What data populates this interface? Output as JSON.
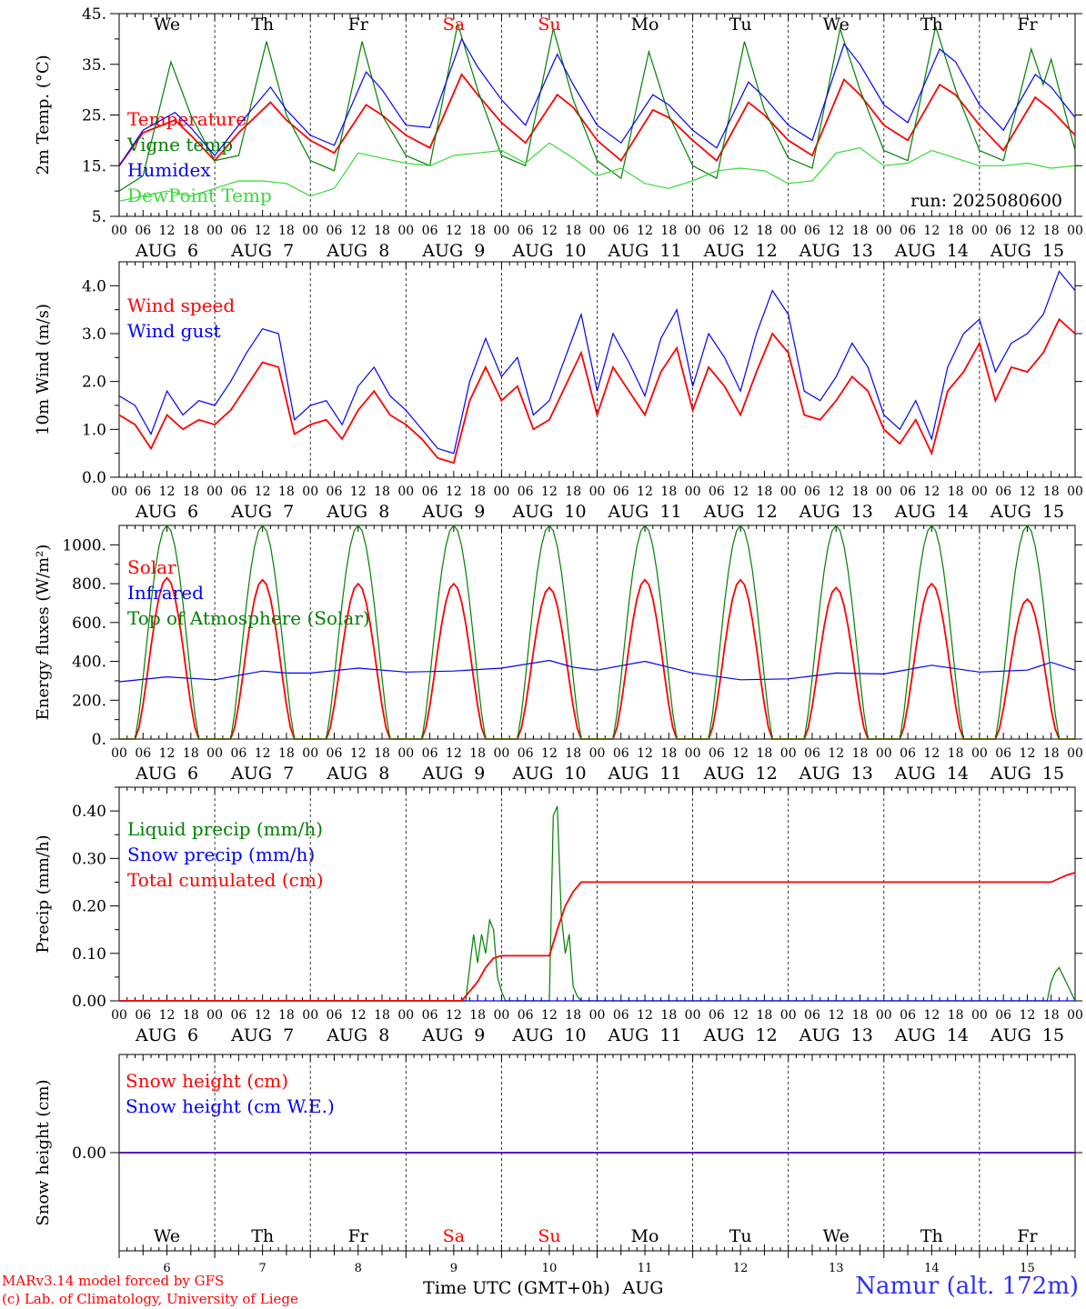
{
  "run_label": "run: 2025080600",
  "days": [
    {
      "abbr": "We",
      "weekend": false,
      "date": "6"
    },
    {
      "abbr": "Th",
      "weekend": false,
      "date": "7"
    },
    {
      "abbr": "Fr",
      "weekend": false,
      "date": "8"
    },
    {
      "abbr": "Sa",
      "weekend": true,
      "date": "9"
    },
    {
      "abbr": "Su",
      "weekend": true,
      "date": "10"
    },
    {
      "abbr": "Mo",
      "weekend": false,
      "date": "11"
    },
    {
      "abbr": "Tu",
      "weekend": false,
      "date": "12"
    },
    {
      "abbr": "We",
      "weekend": false,
      "date": "13"
    },
    {
      "abbr": "Th",
      "weekend": false,
      "date": "14"
    },
    {
      "abbr": "Fr",
      "weekend": false,
      "date": "15"
    }
  ],
  "hour_labels": [
    "00",
    "06",
    "12",
    "18"
  ],
  "last_hour_label": "00",
  "month_label": "AUG",
  "x_axis_title": "Time UTC (GMT+0h)",
  "x_axis_month": "AUG",
  "footer": {
    "line1": "MARv3.14 model forced by GFS",
    "line2": "(c) Lab. of Climatology, University of Liege",
    "station": "Namur (alt. 172m)"
  },
  "colors": {
    "red": "#ff0000",
    "green": "#008000",
    "blue": "#0000ff",
    "light_green": "#33dd33"
  },
  "chart_data": [
    {
      "type": "line",
      "ylabel": "2m Temp. (°C)",
      "ylim": [
        5,
        45
      ],
      "ytick_labels": [
        "5.",
        "15.",
        "25.",
        "35.",
        "45."
      ],
      "x_unit": "hours since 2025-08-06 00 UTC",
      "series": [
        {
          "name": "Temperature",
          "color": "#ff0000",
          "x": [
            0,
            6,
            14,
            18,
            24,
            30,
            38,
            42,
            48,
            54,
            62,
            66,
            72,
            78,
            86,
            90,
            96,
            102,
            110,
            114,
            120,
            126,
            134,
            138,
            144,
            150,
            158,
            162,
            168,
            174,
            182,
            186,
            192,
            198,
            206,
            210,
            216,
            222,
            230,
            234,
            240
          ],
          "y": [
            15.0,
            21.5,
            24.0,
            21.0,
            16.0,
            21.5,
            27.5,
            24.0,
            20.0,
            17.5,
            27.0,
            25.0,
            21.0,
            18.5,
            33.0,
            29.0,
            23.5,
            19.5,
            29.0,
            26.5,
            20.0,
            16.0,
            26.0,
            24.5,
            20.0,
            16.0,
            27.5,
            25.0,
            20.0,
            17.0,
            32.0,
            29.0,
            23.0,
            20.0,
            31.0,
            29.0,
            23.0,
            18.0,
            28.5,
            26.0,
            21.0
          ]
        },
        {
          "name": "Vigne temp",
          "color": "#008000",
          "x": [
            0,
            6,
            13,
            18,
            24,
            30,
            37,
            42,
            48,
            54,
            61,
            66,
            72,
            78,
            85,
            90,
            96,
            102,
            109,
            114,
            120,
            126,
            133,
            138,
            144,
            150,
            157,
            162,
            168,
            174,
            181,
            186,
            192,
            198,
            205,
            210,
            216,
            222,
            229,
            232,
            234,
            240
          ],
          "y": [
            10.0,
            13.0,
            35.5,
            25.0,
            16.0,
            17.0,
            39.5,
            25.0,
            16.0,
            14.0,
            39.5,
            25.0,
            17.0,
            15.0,
            43.0,
            30.0,
            17.0,
            15.0,
            42.0,
            28.0,
            16.0,
            12.5,
            37.5,
            25.0,
            15.0,
            12.5,
            39.5,
            26.0,
            16.5,
            14.5,
            42.0,
            30.0,
            18.0,
            16.0,
            42.5,
            30.0,
            18.0,
            16.0,
            38.0,
            31.0,
            36.0,
            18.0
          ]
        },
        {
          "name": "Humidex",
          "color": "#0000ff",
          "x": [
            0,
            6,
            14,
            18,
            24,
            30,
            38,
            42,
            48,
            54,
            62,
            66,
            72,
            78,
            86,
            90,
            96,
            102,
            110,
            114,
            120,
            126,
            134,
            138,
            144,
            150,
            158,
            162,
            168,
            174,
            182,
            186,
            192,
            198,
            206,
            210,
            216,
            222,
            230,
            234,
            240
          ],
          "y": [
            15.0,
            22.0,
            25.5,
            22.5,
            17.0,
            23.0,
            30.5,
            26.0,
            21.0,
            19.0,
            33.5,
            30.0,
            23.0,
            22.5,
            40.0,
            34.5,
            28.0,
            23.0,
            37.0,
            31.0,
            23.0,
            19.5,
            29.0,
            27.0,
            22.0,
            18.5,
            31.5,
            28.5,
            23.0,
            20.0,
            39.0,
            35.0,
            27.0,
            23.5,
            38.0,
            35.5,
            27.0,
            22.0,
            33.0,
            30.5,
            24.5
          ]
        },
        {
          "name": "DewPoint Temp",
          "color": "#33dd33",
          "x": [
            0,
            6,
            12,
            18,
            24,
            30,
            36,
            42,
            48,
            54,
            60,
            66,
            72,
            78,
            84,
            90,
            96,
            102,
            108,
            114,
            120,
            126,
            132,
            138,
            144,
            150,
            156,
            162,
            168,
            174,
            180,
            186,
            192,
            198,
            204,
            210,
            216,
            222,
            228,
            234,
            240
          ],
          "y": [
            8.0,
            9.0,
            10.0,
            9.0,
            10.5,
            12.0,
            12.0,
            11.5,
            9.0,
            10.5,
            17.5,
            16.5,
            15.5,
            15.0,
            17.0,
            17.5,
            18.0,
            15.5,
            19.5,
            16.5,
            13.0,
            14.5,
            11.5,
            10.5,
            12.0,
            14.0,
            14.5,
            14.0,
            11.5,
            12.0,
            17.5,
            18.5,
            15.0,
            15.5,
            18.0,
            16.5,
            15.0,
            15.0,
            15.5,
            14.5,
            15.0
          ]
        }
      ]
    },
    {
      "type": "line",
      "ylabel": "10m Wind (m/s)",
      "ylim": [
        0,
        4.5
      ],
      "ytick_labels": [
        "0.0",
        "1.0",
        "2.0",
        "3.0",
        "4.0"
      ],
      "x_unit": "hours since 2025-08-06 00 UTC",
      "series": [
        {
          "name": "Wind speed",
          "color": "#ff0000",
          "x": [
            0,
            4,
            8,
            12,
            16,
            20,
            24,
            28,
            32,
            36,
            40,
            44,
            48,
            52,
            56,
            60,
            64,
            68,
            72,
            76,
            80,
            84,
            88,
            92,
            96,
            100,
            104,
            108,
            112,
            116,
            120,
            124,
            128,
            132,
            136,
            140,
            144,
            148,
            152,
            156,
            160,
            164,
            168,
            172,
            176,
            180,
            184,
            188,
            192,
            196,
            200,
            204,
            208,
            212,
            216,
            220,
            224,
            228,
            232,
            236,
            240
          ],
          "y": [
            1.3,
            1.1,
            0.6,
            1.3,
            1.0,
            1.2,
            1.1,
            1.4,
            1.9,
            2.4,
            2.3,
            0.9,
            1.1,
            1.2,
            0.8,
            1.4,
            1.8,
            1.3,
            1.1,
            0.8,
            0.4,
            0.3,
            1.6,
            2.3,
            1.6,
            1.9,
            1.0,
            1.2,
            1.9,
            2.6,
            1.3,
            2.3,
            1.8,
            1.3,
            2.2,
            2.7,
            1.4,
            2.3,
            1.9,
            1.3,
            2.2,
            3.0,
            2.6,
            1.3,
            1.2,
            1.6,
            2.1,
            1.8,
            1.0,
            0.7,
            1.2,
            0.5,
            1.8,
            2.2,
            2.8,
            1.6,
            2.3,
            2.2,
            2.6,
            3.3,
            3.0
          ]
        },
        {
          "name": "Wind gust",
          "color": "#0000ff",
          "x": [
            0,
            4,
            8,
            12,
            16,
            20,
            24,
            28,
            32,
            36,
            40,
            44,
            48,
            52,
            56,
            60,
            64,
            68,
            72,
            76,
            80,
            84,
            88,
            92,
            96,
            100,
            104,
            108,
            112,
            116,
            120,
            124,
            128,
            132,
            136,
            140,
            144,
            148,
            152,
            156,
            160,
            164,
            168,
            172,
            176,
            180,
            184,
            188,
            192,
            196,
            200,
            204,
            208,
            212,
            216,
            220,
            224,
            228,
            232,
            236,
            240
          ],
          "y": [
            1.7,
            1.5,
            0.9,
            1.8,
            1.3,
            1.6,
            1.5,
            2.0,
            2.6,
            3.1,
            3.0,
            1.2,
            1.5,
            1.6,
            1.1,
            1.9,
            2.3,
            1.7,
            1.4,
            1.0,
            0.6,
            0.5,
            2.0,
            2.9,
            2.1,
            2.5,
            1.3,
            1.6,
            2.5,
            3.4,
            1.8,
            3.0,
            2.4,
            1.7,
            2.9,
            3.5,
            1.9,
            3.0,
            2.5,
            1.8,
            3.0,
            3.9,
            3.4,
            1.8,
            1.6,
            2.1,
            2.8,
            2.3,
            1.3,
            1.0,
            1.6,
            0.8,
            2.3,
            3.0,
            3.3,
            2.2,
            2.8,
            3.0,
            3.4,
            4.3,
            3.9
          ]
        }
      ]
    },
    {
      "type": "line",
      "ylabel": "Energy fluxes (W/m²)",
      "ylim": [
        0,
        1100
      ],
      "ytick_labels": [
        "0.",
        "200.",
        "400.",
        "600.",
        "800.",
        "1000."
      ],
      "x_unit": "hours since 2025-08-06 00 UTC",
      "solar_peaks": [
        830,
        820,
        800,
        800,
        780,
        820,
        820,
        780,
        800,
        720
      ],
      "toa_peak": 1100,
      "sun_hours": [
        4,
        20
      ],
      "series": [
        {
          "name": "Solar",
          "color": "#ff0000",
          "daily_peak_ref": "solar_peaks"
        },
        {
          "name": "Infrared",
          "color": "#0000ff",
          "x": [
            0,
            12,
            24,
            36,
            42,
            48,
            60,
            72,
            84,
            96,
            108,
            114,
            120,
            132,
            144,
            156,
            168,
            180,
            192,
            204,
            216,
            228,
            234,
            240
          ],
          "y": [
            295,
            320,
            305,
            350,
            340,
            340,
            365,
            345,
            350,
            365,
            405,
            370,
            355,
            400,
            340,
            305,
            310,
            340,
            335,
            380,
            345,
            355,
            395,
            355
          ]
        },
        {
          "name": "Top of Atmosphere (Solar)",
          "color": "#008000",
          "daily_peak_ref": "toa_peak"
        }
      ]
    },
    {
      "type": "line",
      "ylabel": "Precip (mm/h)",
      "ylim": [
        0,
        0.45
      ],
      "ytick_labels": [
        "0.00",
        "0.10",
        "0.20",
        "0.30",
        "0.40"
      ],
      "x_unit": "hours since 2025-08-06 00 UTC",
      "series": [
        {
          "name": "Liquid precip (mm/h)",
          "color": "#008000",
          "x": [
            0,
            87,
            89,
            90,
            91,
            92,
            93,
            94,
            95,
            96,
            97,
            108,
            109,
            110,
            111,
            112,
            113,
            114,
            115,
            116,
            117,
            233,
            234,
            235,
            236,
            240
          ],
          "y": [
            0,
            0,
            0.14,
            0.08,
            0.14,
            0.1,
            0.17,
            0.15,
            0.05,
            0.02,
            0,
            0,
            0.39,
            0.41,
            0.18,
            0.1,
            0.14,
            0.03,
            0.01,
            0,
            0,
            0,
            0.04,
            0.06,
            0.07,
            0
          ]
        },
        {
          "name": "Snow precip (mm/h)",
          "color": "#0000ff",
          "x": [
            0,
            240
          ],
          "y": [
            0,
            0
          ]
        },
        {
          "name": "Total cumulated (cm)",
          "color": "#ff0000",
          "x": [
            0,
            86,
            88,
            90,
            92,
            94,
            96,
            108,
            110,
            112,
            114,
            116,
            120,
            234,
            238,
            240
          ],
          "y": [
            0,
            0,
            0.02,
            0.04,
            0.07,
            0.09,
            0.095,
            0.095,
            0.15,
            0.2,
            0.23,
            0.25,
            0.25,
            0.25,
            0.265,
            0.27
          ]
        }
      ]
    },
    {
      "type": "line",
      "ylabel": "Snow height (cm)",
      "ylim": [
        -1,
        1
      ],
      "ytick_labels": [
        "0.00"
      ],
      "x_unit": "hours since 2025-08-06 00 UTC",
      "series": [
        {
          "name": "Snow height (cm)",
          "color": "#ff0000",
          "x": [
            0,
            240
          ],
          "y": [
            0,
            0
          ]
        },
        {
          "name": "Snow height (cm W.E.)",
          "color": "#0000ff",
          "x": [
            0,
            240
          ],
          "y": [
            0,
            0
          ]
        }
      ]
    }
  ]
}
